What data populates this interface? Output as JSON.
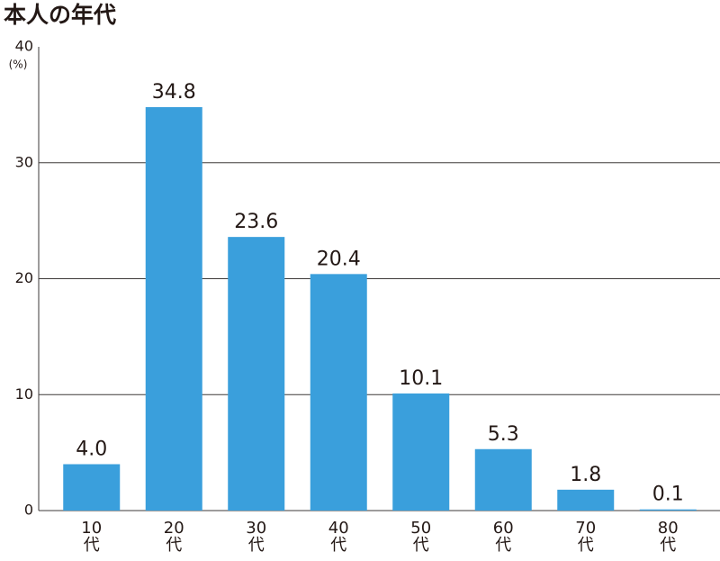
{
  "chart_data": {
    "type": "bar",
    "title": "本人の年代",
    "y_unit": "(%)",
    "categories": [
      "10代",
      "20代",
      "30代",
      "40代",
      "50代",
      "60代",
      "70代",
      "80代"
    ],
    "values": [
      4.0,
      34.8,
      23.6,
      20.4,
      10.1,
      5.3,
      1.8,
      0.1
    ],
    "value_labels": [
      "4.0",
      "34.8",
      "23.6",
      "20.4",
      "10.1",
      "5.3",
      "1.8",
      "0.1"
    ],
    "color": "#3a9fdc",
    "ylim": [
      0,
      40
    ],
    "yticks": [
      0,
      10,
      20,
      30,
      40
    ],
    "grid": true
  }
}
